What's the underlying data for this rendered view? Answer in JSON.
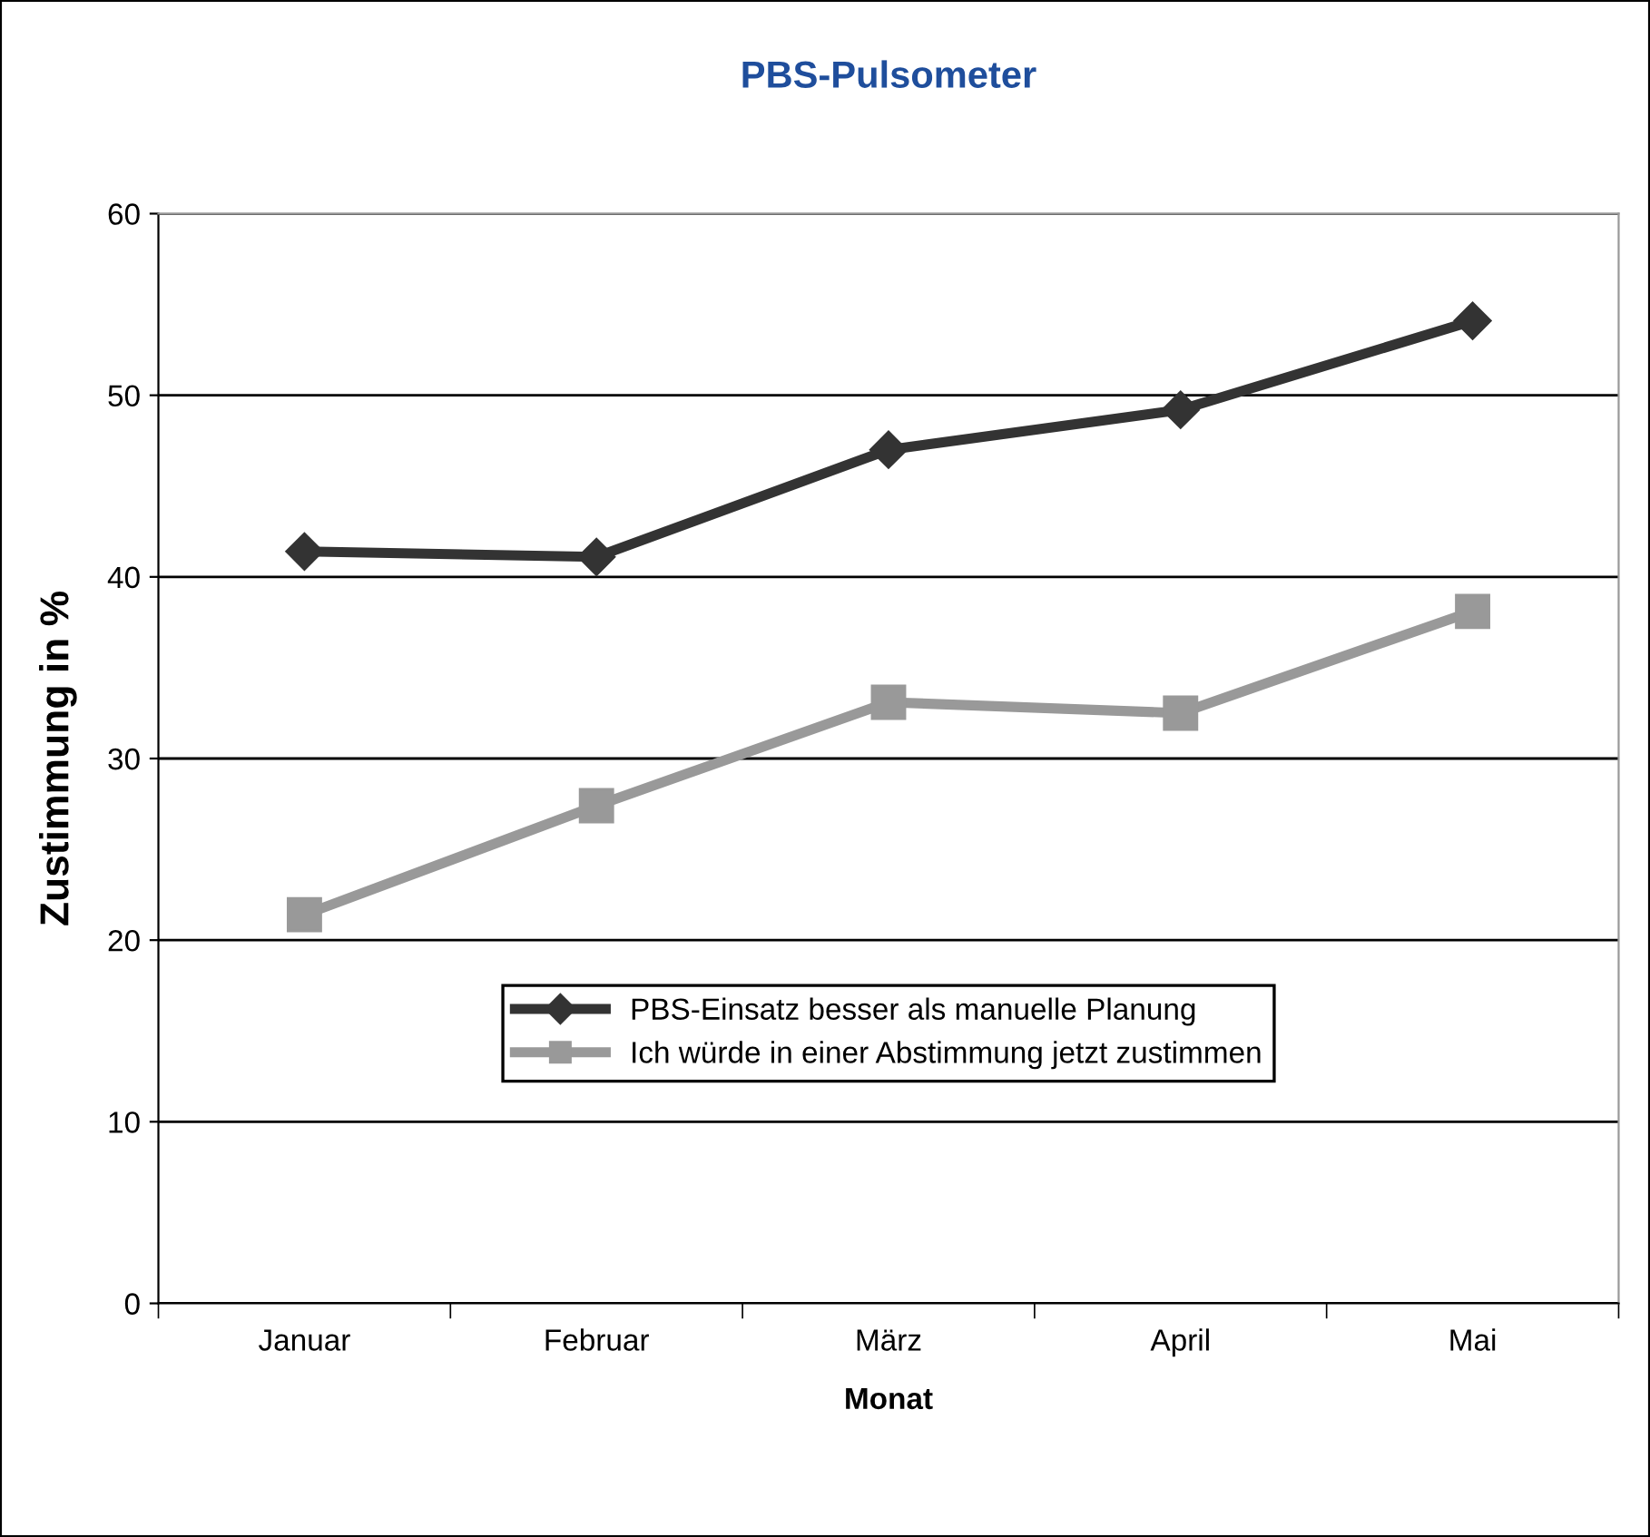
{
  "chart_data": {
    "type": "line",
    "title": "PBS-Pulsometer",
    "xlabel": "Monat",
    "ylabel": "Zustimmung in %",
    "categories": [
      "Januar",
      "Februar",
      "März",
      "April",
      "Mai"
    ],
    "series": [
      {
        "name": "PBS-Einsatz besser als manuelle Planung",
        "color": "#333333",
        "marker": "diamond",
        "values": [
          41.4,
          41.1,
          47.0,
          49.2,
          54.1
        ]
      },
      {
        "name": "Ich würde in einer Abstimmung jetzt zustimmen",
        "color": "#999999",
        "marker": "square",
        "values": [
          21.4,
          27.4,
          33.1,
          32.5,
          38.1
        ]
      }
    ],
    "ylim": [
      0,
      60
    ],
    "yticks": [
      0,
      10,
      20,
      30,
      40,
      50,
      60
    ],
    "grid": "y",
    "legend": "bottom",
    "line_style": "solid"
  }
}
